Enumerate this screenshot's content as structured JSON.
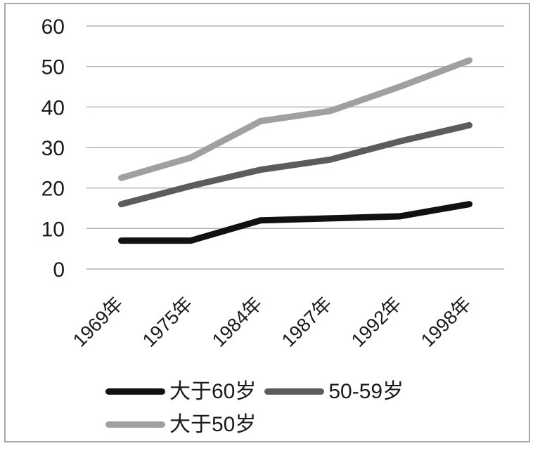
{
  "chart_data": {
    "type": "line",
    "title": "",
    "xlabel": "",
    "ylabel": "",
    "categories": [
      "1969年",
      "1975年",
      "1984年",
      "1987年",
      "1992年",
      "1998年"
    ],
    "series": [
      {
        "name": "大于60岁",
        "color": "#111111",
        "values": [
          7,
          7,
          12,
          12.5,
          13,
          16
        ]
      },
      {
        "name": "50-59岁",
        "color": "#5c5c5c",
        "values": [
          16,
          20.5,
          24.5,
          27,
          31.5,
          35.5
        ]
      },
      {
        "name": "大于50岁",
        "color": "#a0a0a0",
        "values": [
          22.5,
          27.5,
          36.5,
          39,
          45,
          51.5
        ]
      }
    ],
    "ylim": [
      0,
      60
    ],
    "yticks": [
      0,
      10,
      20,
      30,
      40,
      50,
      60
    ],
    "grid": true,
    "legend_position": "bottom"
  },
  "colors": {
    "gridline": "#b3b3b3",
    "axis_text": "#1a1a1a",
    "frame_border": "#a9a9a9",
    "background": "#ffffff"
  }
}
